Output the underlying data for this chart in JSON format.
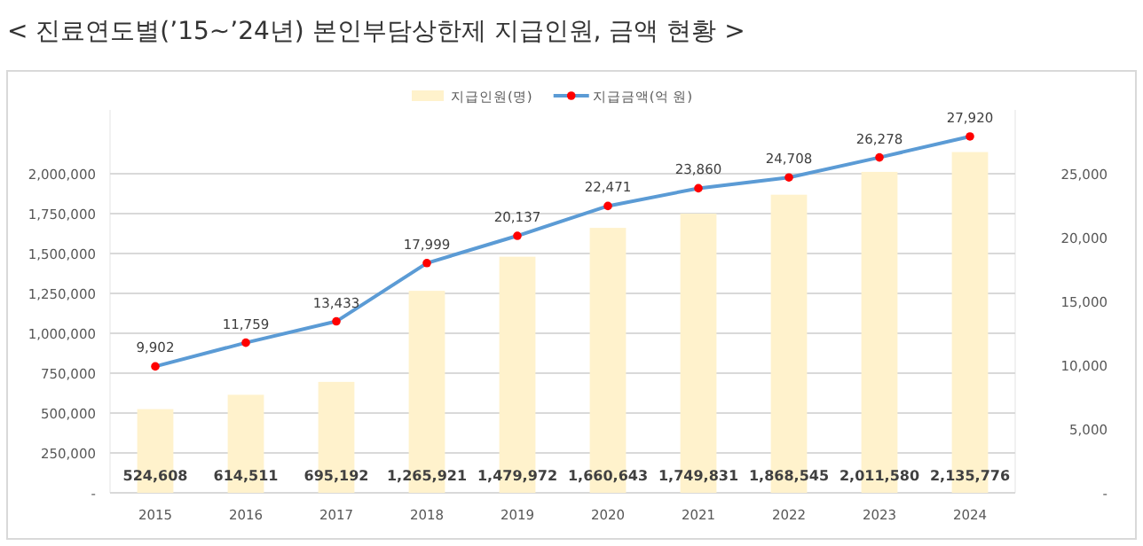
{
  "chart_data": {
    "type": "bar",
    "title": "< 진료연도별(’15~’24년) 본인부담상한제 지급인원, 금액 현황 >",
    "categories": [
      "2015",
      "2016",
      "2017",
      "2018",
      "2019",
      "2020",
      "2021",
      "2022",
      "2023",
      "2024"
    ],
    "series": [
      {
        "name": "지급인원(명)",
        "color": "#fff2cc",
        "values": [
          524608,
          614511,
          695192,
          1265921,
          1479972,
          1660643,
          1749831,
          1868545,
          2011580,
          2135776
        ],
        "value_labels": [
          "524,608",
          "614,511",
          "695,192",
          "1,265,921",
          "1,479,972",
          "1,660,643",
          "1,749,831",
          "1,868,545",
          "2,011,580",
          "2,135,776"
        ]
      },
      {
        "name": "지급금액(억 원)",
        "type": "line",
        "axis": "y2",
        "color": "#5b9bd5",
        "values": [
          9902,
          11759,
          13433,
          17999,
          20137,
          22471,
          23860,
          24708,
          26278,
          27920
        ],
        "value_labels": [
          "9,902",
          "11,759",
          "13,433",
          "17,999",
          "20,137",
          "22,471",
          "23,860",
          "24,708",
          "26,278",
          "27,920"
        ]
      }
    ],
    "ylim": [
      0,
      2400000
    ],
    "yticks": [
      {
        "value": 0,
        "label": "-"
      },
      {
        "value": 250000,
        "label": "250,000"
      },
      {
        "value": 500000,
        "label": "500,000"
      },
      {
        "value": 750000,
        "label": "750,000"
      },
      {
        "value": 1000000,
        "label": "1,000,000"
      },
      {
        "value": 1250000,
        "label": "1,250,000"
      },
      {
        "value": 1500000,
        "label": "1,500,000"
      },
      {
        "value": 1750000,
        "label": "1,750,000"
      },
      {
        "value": 2000000,
        "label": "2,000,000"
      }
    ],
    "y2lim": [
      0,
      30000
    ],
    "y2ticks": [
      {
        "value": 0,
        "label": "-"
      },
      {
        "value": 5000,
        "label": "5,000"
      },
      {
        "value": 10000,
        "label": "10,000"
      },
      {
        "value": 15000,
        "label": "15,000"
      },
      {
        "value": 20000,
        "label": "20,000"
      },
      {
        "value": 25000,
        "label": "25,000"
      }
    ],
    "grid": "y",
    "legend": "top",
    "marker": "circle"
  }
}
